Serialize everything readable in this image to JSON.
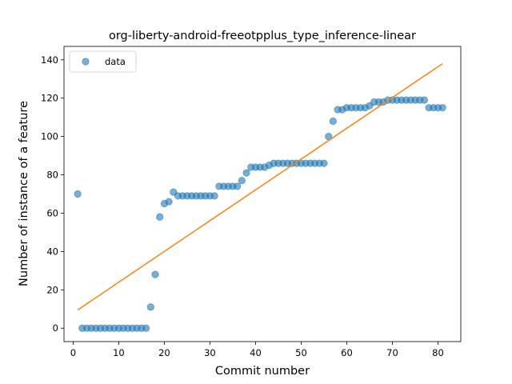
{
  "chart_data": {
    "type": "scatter",
    "title": "org-liberty-android-freeotpplus_type_inference-linear",
    "xlabel": "Commit number",
    "ylabel": "Number of instance of a feature",
    "xlim": [
      -2.0,
      85.0
    ],
    "ylim": [
      -7.0,
      147.0
    ],
    "xticks": [
      0,
      10,
      20,
      30,
      40,
      50,
      60,
      70,
      80
    ],
    "yticks": [
      0,
      20,
      40,
      60,
      80,
      100,
      120,
      140
    ],
    "grid": false,
    "legend_position": "top-left",
    "series": [
      {
        "name": "data",
        "kind": "scatter",
        "color": "#1f77b4",
        "x": [
          1,
          2,
          3,
          4,
          5,
          6,
          7,
          8,
          9,
          10,
          11,
          12,
          13,
          14,
          15,
          16,
          17,
          18,
          19,
          20,
          21,
          22,
          23,
          24,
          25,
          26,
          27,
          28,
          29,
          30,
          31,
          32,
          33,
          34,
          35,
          36,
          37,
          38,
          39,
          40,
          41,
          42,
          43,
          44,
          45,
          46,
          47,
          48,
          49,
          50,
          51,
          52,
          53,
          54,
          55,
          56,
          57,
          58,
          59,
          60,
          61,
          62,
          63,
          64,
          65,
          66,
          67,
          68,
          69,
          70,
          71,
          72,
          73,
          74,
          75,
          76,
          77,
          78,
          79,
          80,
          81
        ],
        "y": [
          70,
          0,
          0,
          0,
          0,
          0,
          0,
          0,
          0,
          0,
          0,
          0,
          0,
          0,
          0,
          0,
          11,
          28,
          58,
          65,
          66,
          71,
          69,
          69,
          69,
          69,
          69,
          69,
          69,
          69,
          69,
          74,
          74,
          74,
          74,
          74,
          77,
          81,
          84,
          84,
          84,
          84,
          85,
          86,
          86,
          86,
          86,
          86,
          86,
          86,
          86,
          86,
          86,
          86,
          86,
          100,
          108,
          114,
          114,
          115,
          115,
          115,
          115,
          115,
          116,
          118,
          118,
          118,
          119,
          119,
          119,
          119,
          119,
          119,
          119,
          119,
          119,
          115,
          115,
          115,
          115
        ]
      },
      {
        "kind": "line",
        "color": "#ff7f0e",
        "x": [
          1,
          81
        ],
        "y": [
          9.5,
          138
        ]
      }
    ]
  }
}
